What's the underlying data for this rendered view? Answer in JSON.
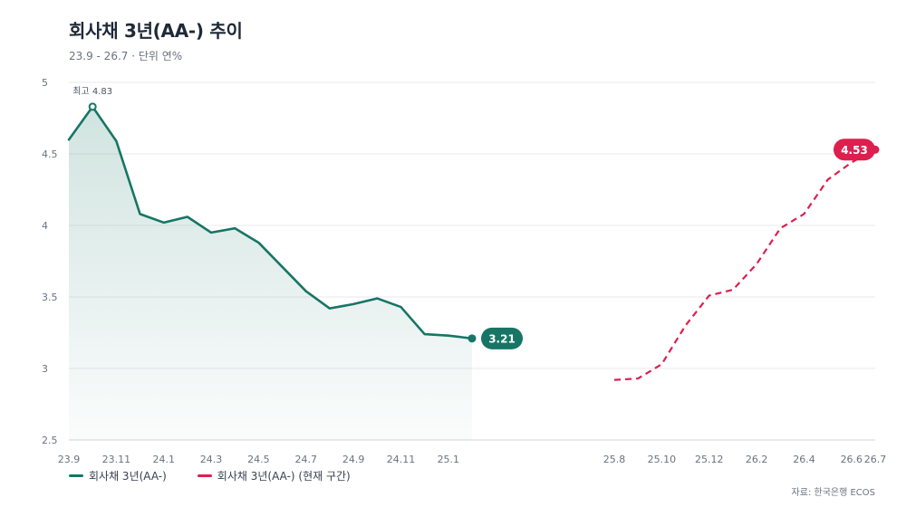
{
  "header": {
    "title": "회사채 3년(AA-) 추이",
    "subtitle": "23.9 - 26.7 · 단위 연%"
  },
  "legend": {
    "series_1": "회사채 3년(AA-)",
    "series_2": "회사채 3년(AA-) (현재 구간)"
  },
  "source": "자료: 한국은행 ECOS",
  "annotations": {
    "peak_label": "최고 4.83",
    "end_solid_label": "3.21",
    "end_dashed_label": "4.53"
  },
  "colors": {
    "series_1": "#177565",
    "series_2": "#dc1f4e",
    "grid": "#e8eaed",
    "axis_text": "#6b7280"
  },
  "chart_data": {
    "type": "line",
    "title": "회사채 3년(AA-) 추이",
    "subtitle": "23.9 - 26.7 · 단위 연%",
    "ylim": [
      2.5,
      5
    ],
    "yticks": [
      "2.5",
      "3",
      "3.5",
      "4",
      "4.5",
      "5"
    ],
    "xticks": [
      "23.9",
      "23.11",
      "24.1",
      "24.3",
      "24.5",
      "24.7",
      "24.9",
      "24.11",
      "25.1",
      "25.8",
      "25.10",
      "25.12",
      "26.2",
      "26.4",
      "26.6",
      "26.7"
    ],
    "grid": true,
    "legend_position": "bottom-left",
    "series": [
      {
        "name": "회사채 3년(AA-)",
        "style": "solid",
        "area": true,
        "x": [
          "23.9",
          "23.10",
          "23.11",
          "23.12",
          "24.1",
          "24.2",
          "24.3",
          "24.4",
          "24.5",
          "24.6",
          "24.7",
          "24.8",
          "24.9",
          "24.10",
          "24.11",
          "24.12",
          "25.1",
          "25.2"
        ],
        "values": [
          4.6,
          4.83,
          4.59,
          4.08,
          4.02,
          4.06,
          3.95,
          3.98,
          3.88,
          3.71,
          3.54,
          3.42,
          3.45,
          3.49,
          3.43,
          3.24,
          3.23,
          3.21
        ]
      },
      {
        "name": "회사채 3년(AA-) (현재 구간)",
        "style": "dashed",
        "x": [
          "25.8",
          "25.9",
          "25.10",
          "25.11",
          "25.12",
          "26.1",
          "26.2",
          "26.3",
          "26.4",
          "26.5",
          "26.6",
          "26.7"
        ],
        "values": [
          2.92,
          2.93,
          3.03,
          3.3,
          3.51,
          3.55,
          3.73,
          3.98,
          4.08,
          4.32,
          4.44,
          4.53
        ]
      }
    ]
  }
}
